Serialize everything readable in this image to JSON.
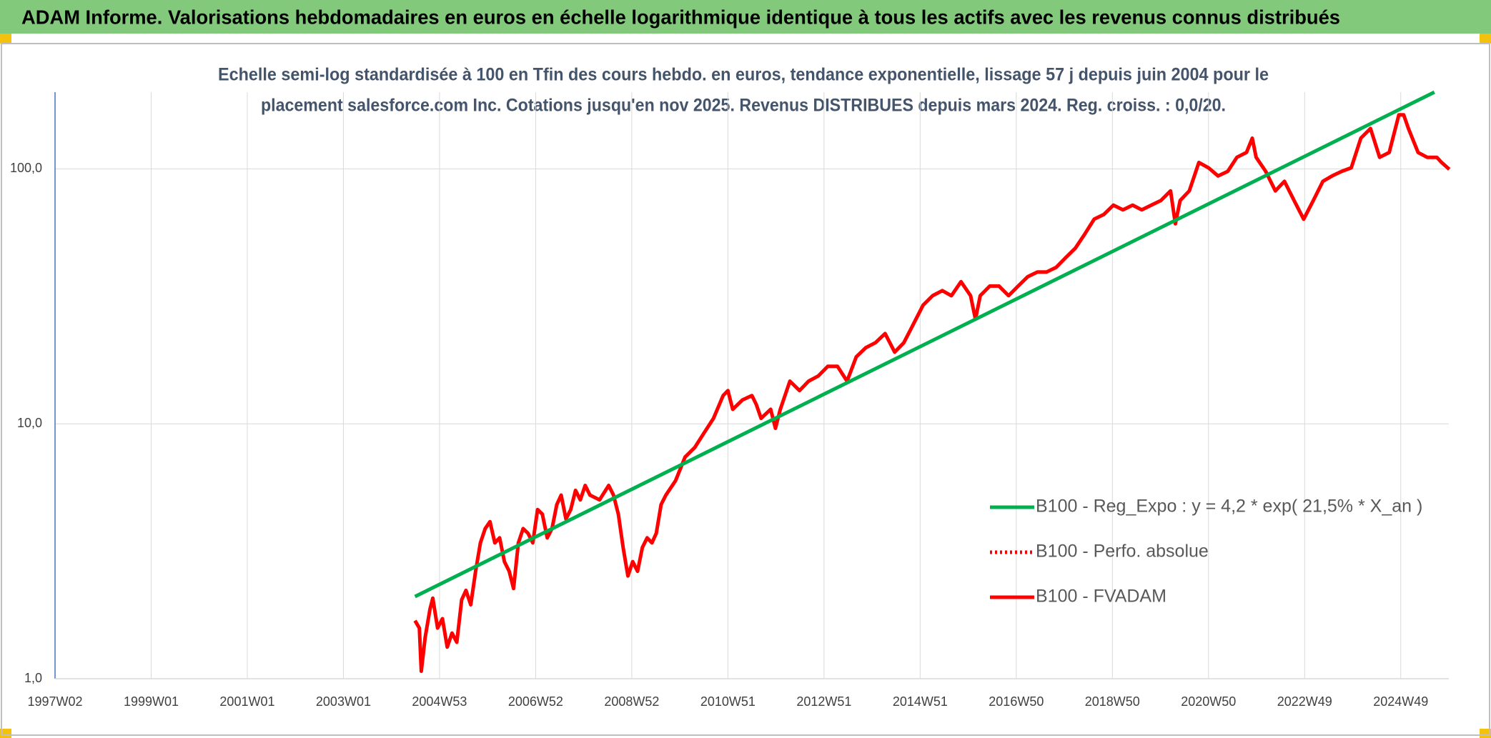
{
  "chart_data": {
    "type": "line",
    "title": "ADAM Informe. Valorisations hebdomadaires en euros en échelle logarithmique identique à tous les actifs avec les revenus connus distribués",
    "subtitle": [
      "Echelle semi-log standardisée à 100 en Tfin des cours hebdo. en euros, tendance exponentielle, lissage 57 j depuis juin 2004 pour le",
      "placement salesforce.com Inc. Cotations jusqu'en nov 2025. Revenus DISTRIBUES depuis mars 2024. Reg. croiss. : 0,0/20."
    ],
    "log_scale": true,
    "grid": true,
    "legend_position": "lower right",
    "xlim": [
      1997,
      2026
    ],
    "xticks": [
      {
        "value": 1997,
        "label": "1997W02"
      },
      {
        "value": 1999,
        "label": "1999W01"
      },
      {
        "value": 2001,
        "label": "2001W01"
      },
      {
        "value": 2003,
        "label": "2003W01"
      },
      {
        "value": 2005,
        "label": "2004W53"
      },
      {
        "value": 2007,
        "label": "2006W52"
      },
      {
        "value": 2009,
        "label": "2008W52"
      },
      {
        "value": 2011,
        "label": "2010W51"
      },
      {
        "value": 2013,
        "label": "2012W51"
      },
      {
        "value": 2015,
        "label": "2014W51"
      },
      {
        "value": 2017,
        "label": "2016W50"
      },
      {
        "value": 2019,
        "label": "2018W50"
      },
      {
        "value": 2021,
        "label": "2020W50"
      },
      {
        "value": 2023,
        "label": "2022W49"
      },
      {
        "value": 2025,
        "label": "2024W49"
      }
    ],
    "ylim": [
      1,
      200
    ],
    "yticks": [
      {
        "value": 1,
        "label": "1,0"
      },
      {
        "value": 10,
        "label": "10,0"
      },
      {
        "value": 100,
        "label": "100,0"
      }
    ],
    "series": [
      {
        "name": "B100 - Reg_Expo : y = 4,2 * exp( 21,5% *  X_an )",
        "color": "#00b050",
        "style": "solid",
        "x": [
          2004.49,
          2025.7
        ],
        "values": [
          2.1,
          200
        ]
      },
      {
        "name": "B100 - Perfo. absolue",
        "color": "#ff0000",
        "style": "dotted",
        "x": [],
        "values": []
      },
      {
        "name": "B100 - FVADAM",
        "color": "#ff0000",
        "style": "solid",
        "x": [
          2004.49,
          2004.58,
          2004.62,
          2004.7,
          2004.8,
          2004.86,
          2004.96,
          2005.06,
          2005.16,
          2005.26,
          2005.36,
          2005.46,
          2005.55,
          2005.65,
          2005.75,
          2005.85,
          2005.95,
          2006.05,
          2006.15,
          2006.25,
          2006.35,
          2006.45,
          2006.54,
          2006.64,
          2006.74,
          2006.84,
          2006.94,
          2007.04,
          2007.14,
          2007.24,
          2007.34,
          2007.44,
          2007.53,
          2007.63,
          2007.73,
          2007.83,
          2007.93,
          2008.03,
          2008.13,
          2008.33,
          2008.52,
          2008.62,
          2008.72,
          2008.82,
          2008.92,
          2009.02,
          2009.12,
          2009.22,
          2009.32,
          2009.42,
          2009.51,
          2009.61,
          2009.71,
          2009.91,
          2010.11,
          2010.31,
          2010.5,
          2010.7,
          2010.9,
          2011.0,
          2011.1,
          2011.3,
          2011.5,
          2011.59,
          2011.69,
          2011.89,
          2011.99,
          2012.09,
          2012.29,
          2012.49,
          2012.68,
          2012.88,
          2013.08,
          2013.28,
          2013.48,
          2013.67,
          2013.87,
          2014.07,
          2014.27,
          2014.47,
          2014.66,
          2014.86,
          2015.06,
          2015.26,
          2015.46,
          2015.65,
          2015.85,
          2016.05,
          2016.15,
          2016.25,
          2016.45,
          2016.64,
          2016.84,
          2017.04,
          2017.24,
          2017.44,
          2017.63,
          2017.83,
          2018.03,
          2018.23,
          2018.43,
          2018.62,
          2018.82,
          2019.02,
          2019.22,
          2019.42,
          2019.61,
          2019.81,
          2020.01,
          2020.21,
          2020.31,
          2020.41,
          2020.6,
          2020.8,
          2021.0,
          2021.2,
          2021.4,
          2021.59,
          2021.79,
          2021.91,
          2021.99,
          2022.19,
          2022.39,
          2022.58,
          2022.78,
          2022.98,
          2023.18,
          2023.38,
          2023.57,
          2023.77,
          2023.97,
          2024.17,
          2024.37,
          2024.56,
          2024.76,
          2024.96,
          2025.06,
          2025.16,
          2025.36,
          2025.55,
          2025.75,
          2025.85,
          2026.01
        ],
        "values": [
          1.69,
          1.58,
          1.07,
          1.45,
          1.87,
          2.07,
          1.58,
          1.72,
          1.33,
          1.51,
          1.39,
          2.04,
          2.22,
          1.95,
          2.64,
          3.41,
          3.88,
          4.13,
          3.41,
          3.57,
          2.88,
          2.64,
          2.26,
          3.41,
          3.88,
          3.72,
          3.41,
          4.61,
          4.42,
          3.57,
          3.88,
          4.82,
          5.25,
          4.23,
          4.61,
          5.48,
          5.03,
          5.73,
          5.25,
          5.03,
          5.73,
          5.25,
          4.42,
          3.27,
          2.53,
          2.88,
          2.64,
          3.27,
          3.57,
          3.41,
          3.72,
          4.82,
          5.25,
          5.98,
          7.41,
          8.07,
          9.19,
          10.5,
          12.9,
          13.5,
          11.4,
          12.4,
          12.9,
          11.9,
          10.5,
          11.4,
          9.6,
          11.4,
          14.7,
          13.5,
          14.7,
          15.4,
          16.8,
          16.8,
          14.7,
          18.3,
          19.9,
          20.8,
          22.6,
          19.1,
          20.8,
          24.6,
          29.2,
          31.8,
          33.3,
          31.8,
          36.1,
          31.8,
          25.7,
          31.8,
          34.7,
          34.7,
          31.8,
          34.7,
          37.8,
          39.4,
          39.4,
          41.1,
          44.9,
          48.9,
          55.7,
          63.5,
          66.2,
          72.1,
          69.1,
          72.1,
          69.1,
          72.1,
          75.2,
          82.0,
          60.9,
          75.2,
          82.0,
          106,
          101,
          93.8,
          97.8,
          111,
          116,
          132,
          111,
          97.8,
          82.0,
          89.4,
          75.2,
          63.5,
          75.2,
          89.4,
          93.8,
          97.8,
          101,
          132,
          144,
          111,
          116,
          163,
          163,
          144,
          116,
          111,
          111,
          106,
          99.6
        ]
      }
    ]
  }
}
